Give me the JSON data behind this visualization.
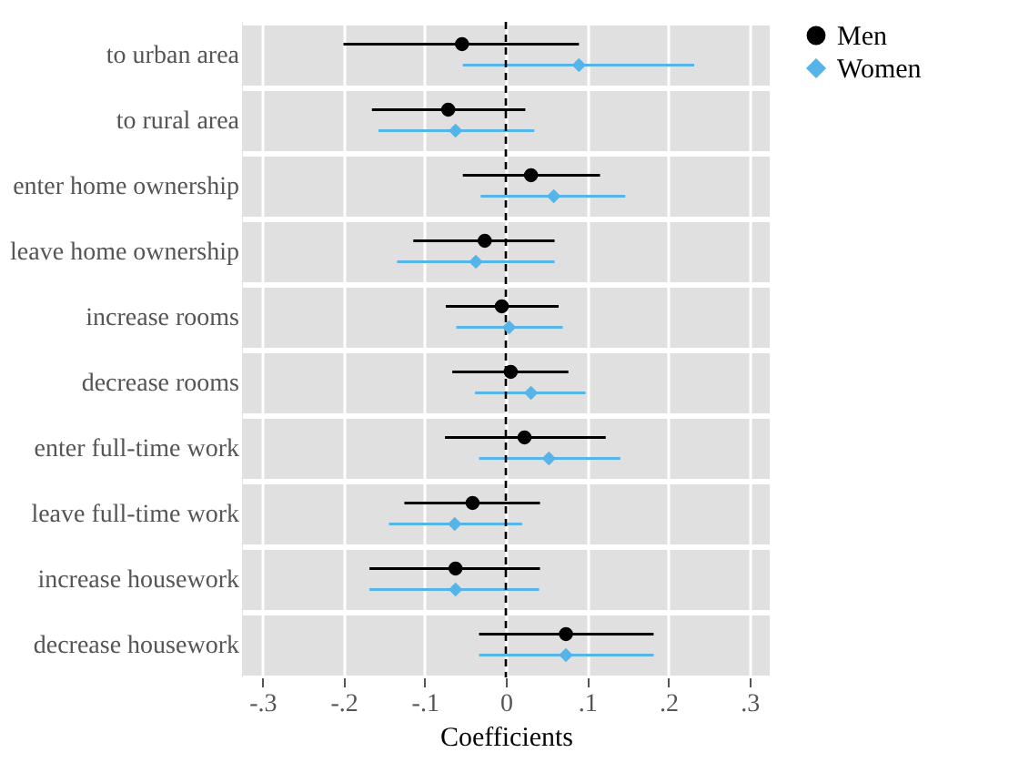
{
  "chart_data": {
    "type": "scatter",
    "orientation": "horizontal",
    "xlabel": "Coefficients",
    "categories": [
      "to urban area",
      "to rural area",
      "enter home ownership",
      "leave home ownership",
      "increase rooms",
      "decrease rooms",
      "enter full-time work",
      "leave full-time work",
      "increase housework",
      "decrease housework"
    ],
    "series": [
      {
        "name": "Men",
        "color": "#000000",
        "marker": "circle",
        "values": [
          -0.054,
          -0.071,
          0.031,
          -0.026,
          -0.005,
          0.006,
          0.023,
          -0.041,
          -0.062,
          0.074
        ],
        "errors": [
          [
            -0.2,
            0.09
          ],
          [
            -0.165,
            0.024
          ],
          [
            -0.053,
            0.116
          ],
          [
            -0.114,
            0.06
          ],
          [
            -0.074,
            0.065
          ],
          [
            -0.066,
            0.077
          ],
          [
            -0.075,
            0.123
          ],
          [
            -0.125,
            0.042
          ],
          [
            -0.168,
            0.042
          ],
          [
            -0.033,
            0.182
          ]
        ]
      },
      {
        "name": "Women",
        "color": "#56b4e9",
        "marker": "diamond",
        "values": [
          0.09,
          -0.062,
          0.059,
          -0.037,
          0.004,
          0.031,
          0.053,
          -0.063,
          -0.062,
          0.074
        ],
        "errors": [
          [
            -0.053,
            0.232
          ],
          [
            -0.157,
            0.035
          ],
          [
            -0.031,
            0.147
          ],
          [
            -0.134,
            0.06
          ],
          [
            -0.061,
            0.07
          ],
          [
            -0.038,
            0.098
          ],
          [
            -0.033,
            0.141
          ],
          [
            -0.144,
            0.02
          ],
          [
            -0.168,
            0.041
          ],
          [
            -0.033,
            0.182
          ]
        ]
      }
    ],
    "xlim": [
      -0.325,
      0.325
    ],
    "xticks": [
      {
        "value": -0.3,
        "label": "-.3"
      },
      {
        "value": -0.2,
        "label": "-.2"
      },
      {
        "value": -0.1,
        "label": "-.1"
      },
      0,
      {
        "value": 0.1,
        "label": ".1"
      },
      {
        "value": 0.2,
        "label": ".2"
      },
      {
        "value": 0.3,
        "label": ".3"
      }
    ],
    "ref_lines": [
      {
        "axis": "x",
        "value": 0,
        "color": "#000000",
        "line_style": "dashed"
      }
    ],
    "grid": true,
    "legend": "right"
  }
}
